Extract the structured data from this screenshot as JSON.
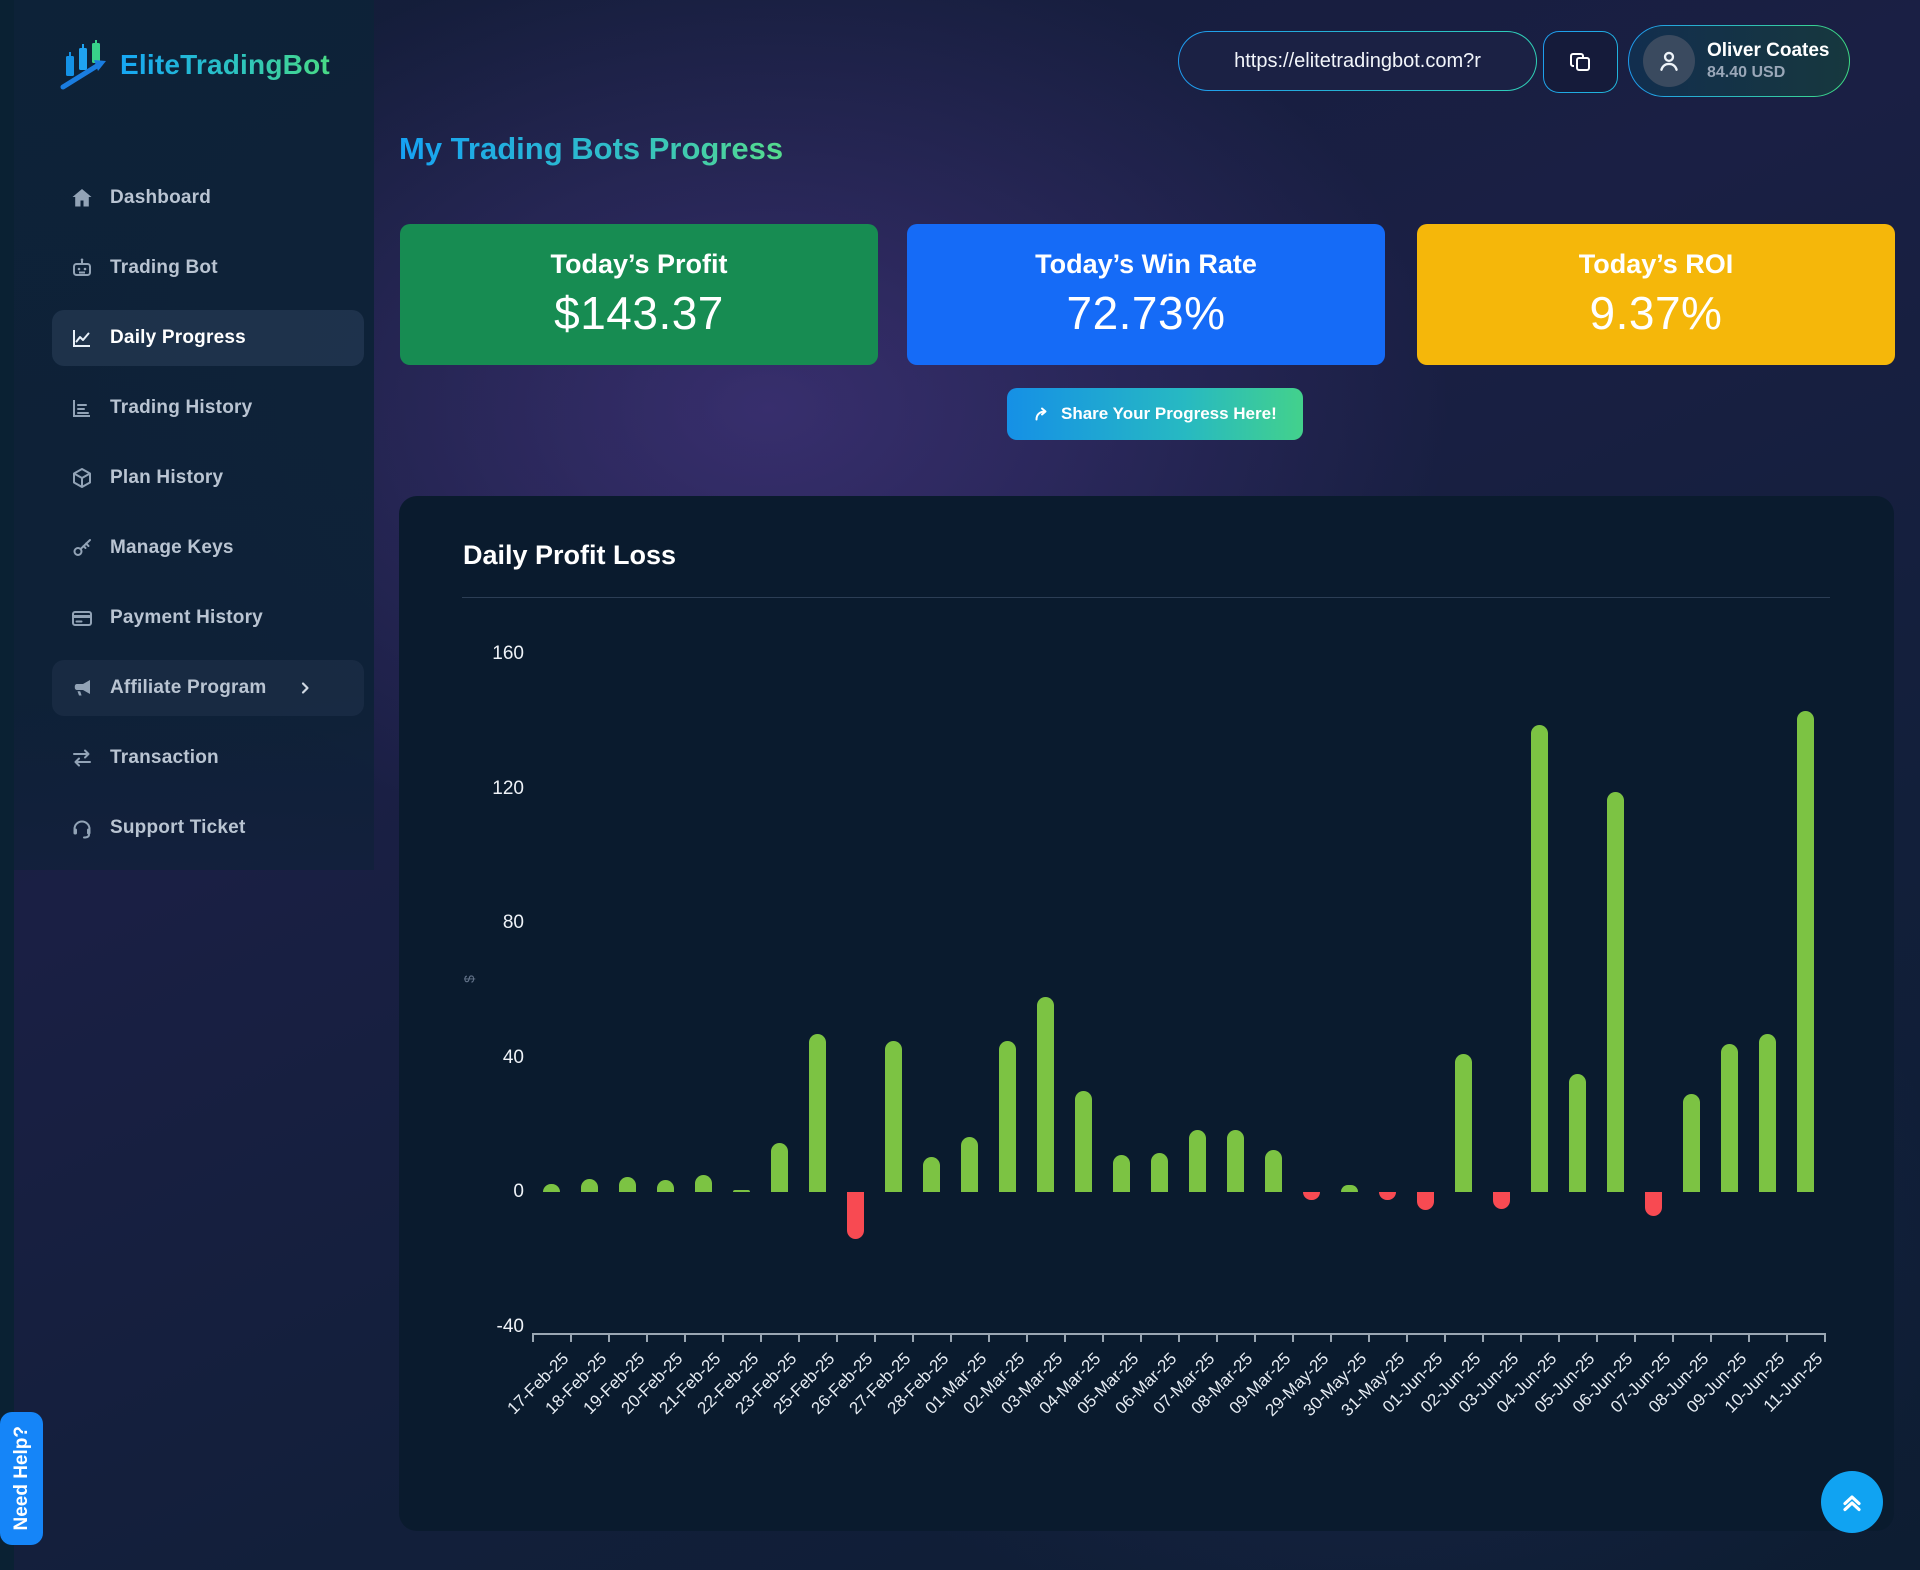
{
  "brand": {
    "name": "EliteTradingBot",
    "logo_icon": "candlestick-arrow-icon"
  },
  "topbar": {
    "referral_url": "https://elitetradingbot.com?r",
    "copy_icon": "copy-icon",
    "user": {
      "name": "Oliver Coates",
      "balance": "84.40 USD",
      "avatar_icon": "person-icon"
    }
  },
  "sidebar": {
    "items": [
      {
        "label": "Dashboard",
        "icon": "home-icon",
        "active": false
      },
      {
        "label": "Trading Bot",
        "icon": "robot-icon",
        "active": false
      },
      {
        "label": "Daily Progress",
        "icon": "line-chart-icon",
        "active": true
      },
      {
        "label": "Trading History",
        "icon": "bar-chart-icon",
        "active": false
      },
      {
        "label": "Plan History",
        "icon": "cube-icon",
        "active": false
      },
      {
        "label": "Manage Keys",
        "icon": "key-icon",
        "active": false
      },
      {
        "label": "Payment History",
        "icon": "credit-card-icon",
        "active": false
      },
      {
        "label": "Affiliate Program",
        "icon": "megaphone-icon",
        "active": false,
        "has_chevron": true
      },
      {
        "label": "Transaction",
        "icon": "swap-arrows-icon",
        "active": false
      },
      {
        "label": "Support Ticket",
        "icon": "headset-icon",
        "active": false
      }
    ]
  },
  "page": {
    "title": "My Trading Bots Progress"
  },
  "stats": [
    {
      "label": "Today’s Profit",
      "value": "$143.37",
      "color": "#178c52"
    },
    {
      "label": "Today’s Win Rate",
      "value": "72.73%",
      "color": "#156bf7"
    },
    {
      "label": "Today’s ROI",
      "value": "9.37%",
      "color": "#f5b70a"
    }
  ],
  "share_button": {
    "label": "Share Your Progress Here!",
    "icon": "share-arrow-icon"
  },
  "help_button": {
    "label": "Need Help?"
  },
  "scroll_top_button": {
    "icon": "double-chevron-up-icon"
  },
  "chart_data": {
    "type": "bar",
    "title": "Daily Profit Loss",
    "xlabel": "",
    "ylabel": "$",
    "ylim": [
      -40,
      160
    ],
    "yticks": [
      160,
      120,
      80,
      40,
      0,
      -40
    ],
    "grid": false,
    "legend": false,
    "categories": [
      "17-Feb-25",
      "18-Feb-25",
      "19-Feb-25",
      "20-Feb-25",
      "21-Feb-25",
      "22-Feb-25",
      "23-Feb-25",
      "25-Feb-25",
      "26-Feb-25",
      "27-Feb-25",
      "28-Feb-25",
      "01-Mar-25",
      "02-Mar-25",
      "03-Mar-25",
      "04-Mar-25",
      "05-Mar-25",
      "06-Mar-25",
      "07-Mar-25",
      "08-Mar-25",
      "09-Mar-25",
      "29-May-25",
      "30-May-25",
      "31-May-25",
      "01-Jun-25",
      "02-Jun-25",
      "03-Jun-25",
      "04-Jun-25",
      "05-Jun-25",
      "06-Jun-25",
      "07-Jun-25",
      "08-Jun-25",
      "09-Jun-25",
      "10-Jun-25",
      "11-Jun-25"
    ],
    "values": [
      2.5,
      4,
      4.5,
      3.5,
      5,
      0.5,
      14.5,
      47,
      -14,
      45,
      10.5,
      16.5,
      45,
      58,
      30,
      11,
      11.5,
      18.5,
      18.5,
      12.5,
      -2.5,
      2,
      -2.5,
      -5.5,
      41,
      -5,
      139,
      35,
      119,
      -7,
      29,
      44,
      47,
      143
    ],
    "colors": {
      "positive": "#7cc343",
      "negative": "#f84a52"
    }
  }
}
